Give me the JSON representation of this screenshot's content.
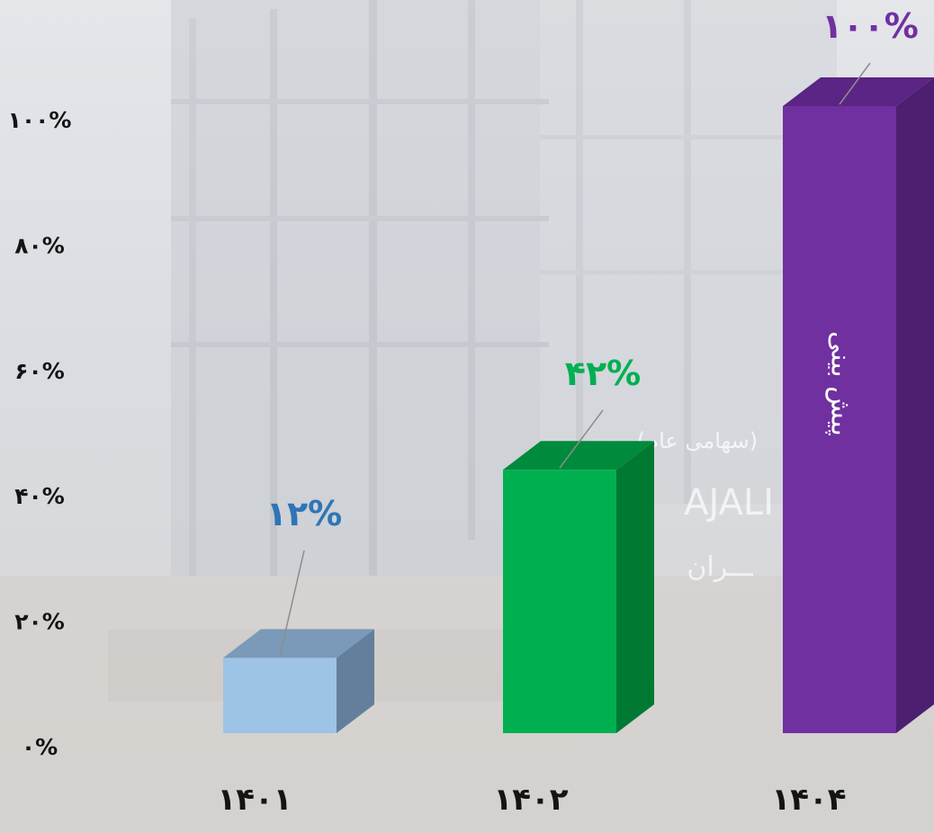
{
  "chart_data": {
    "type": "bar",
    "categories": [
      "۱۴۰۱",
      "۱۴۰۲",
      "۱۴۰۴"
    ],
    "values": [
      12,
      42,
      100
    ],
    "data_labels": [
      "۱۲%",
      "۴۲%",
      "۱۰۰%"
    ],
    "bar_inner_labels": [
      "",
      "",
      "پیش بینی"
    ],
    "colors": {
      "front": [
        "#9dc3e6",
        "#00b050",
        "#7030a0"
      ],
      "top": [
        "#7b99b8",
        "#008a3c",
        "#5a2584"
      ],
      "side": [
        "#637f9c",
        "#007a33",
        "#4c1f70"
      ],
      "labels": [
        "#2e75b6",
        "#00b050",
        "#7030a0"
      ]
    },
    "y_ticks": [
      "۰%",
      "۲۰%",
      "۴۰%",
      "۶۰%",
      "۸۰%",
      "۱۰۰%"
    ],
    "ylim": [
      0,
      100
    ],
    "title": "",
    "xlabel": "",
    "ylabel": "",
    "grid": false,
    "legend": "none",
    "style": "3d-column"
  },
  "background": {
    "watermark_lines": [
      "(سهامی عام)",
      "AJALI",
      "ـــران"
    ]
  }
}
